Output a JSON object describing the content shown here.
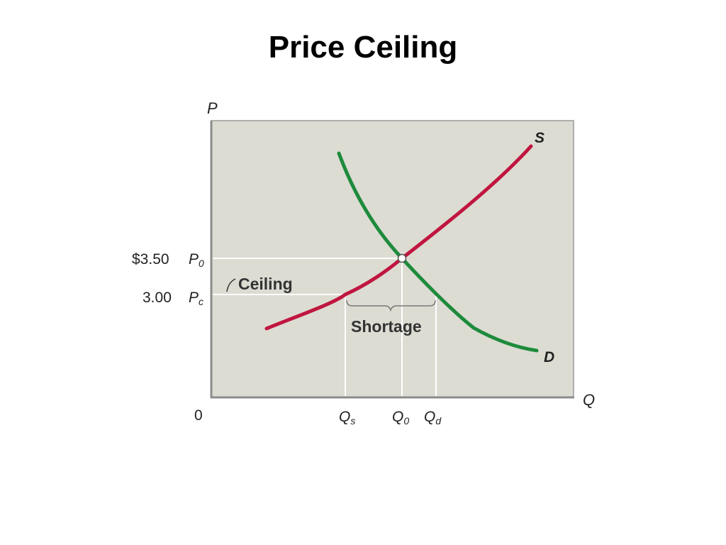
{
  "slide": {
    "title": "Price Ceiling"
  },
  "diagram": {
    "axis_p": "P",
    "axis_q": "Q",
    "origin": "0",
    "price_p0_value": "$3.50",
    "price_p0_label": "P",
    "price_p0_sub": "0",
    "price_pc_value": "3.00",
    "price_pc_label": "P",
    "price_pc_sub": "c",
    "qty_qs_label": "Q",
    "qty_qs_sub": "s",
    "qty_q0_label": "Q",
    "qty_q0_sub": "0",
    "qty_qd_label": "Q",
    "qty_qd_sub": "d",
    "ceiling_label": "Ceiling",
    "shortage_label": "Shortage",
    "supply_label": "S",
    "demand_label": "D"
  },
  "colors": {
    "plot_background": "#dcdcd3",
    "supply": "#c0163f",
    "demand": "#1e8b3c",
    "guide": "#ffffff",
    "axis": "#9a9a9a"
  }
}
